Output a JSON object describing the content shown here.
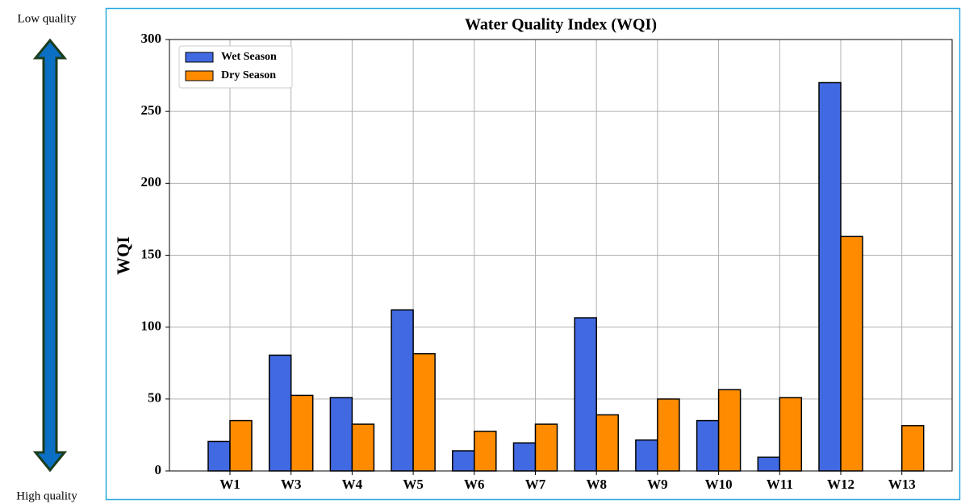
{
  "chart_data": {
    "type": "bar",
    "title": "Water Quality Index (WQI)",
    "ylabel": "WQI",
    "annotations": {
      "top": "Low quality",
      "bottom": "High quality"
    },
    "categories": [
      "W1",
      "W3",
      "W4",
      "W5",
      "W6",
      "W7",
      "W8",
      "W9",
      "W10",
      "W11",
      "W12",
      "W13"
    ],
    "series": [
      {
        "name": "Wet Season",
        "color": "#4169e1",
        "values": [
          20.5,
          80.5,
          51,
          112,
          14,
          19.5,
          106.5,
          21.5,
          35,
          9.5,
          270,
          null
        ]
      },
      {
        "name": "Dry Season",
        "color": "#ff8c00",
        "values": [
          35,
          52.5,
          32.5,
          81.5,
          27.5,
          32.5,
          39,
          50,
          56.5,
          51,
          163,
          31.5
        ]
      }
    ],
    "ylim": [
      0,
      300
    ],
    "yticks": [
      0,
      50,
      100,
      150,
      200,
      250,
      300
    ],
    "grid": true,
    "legend": "upper left"
  }
}
